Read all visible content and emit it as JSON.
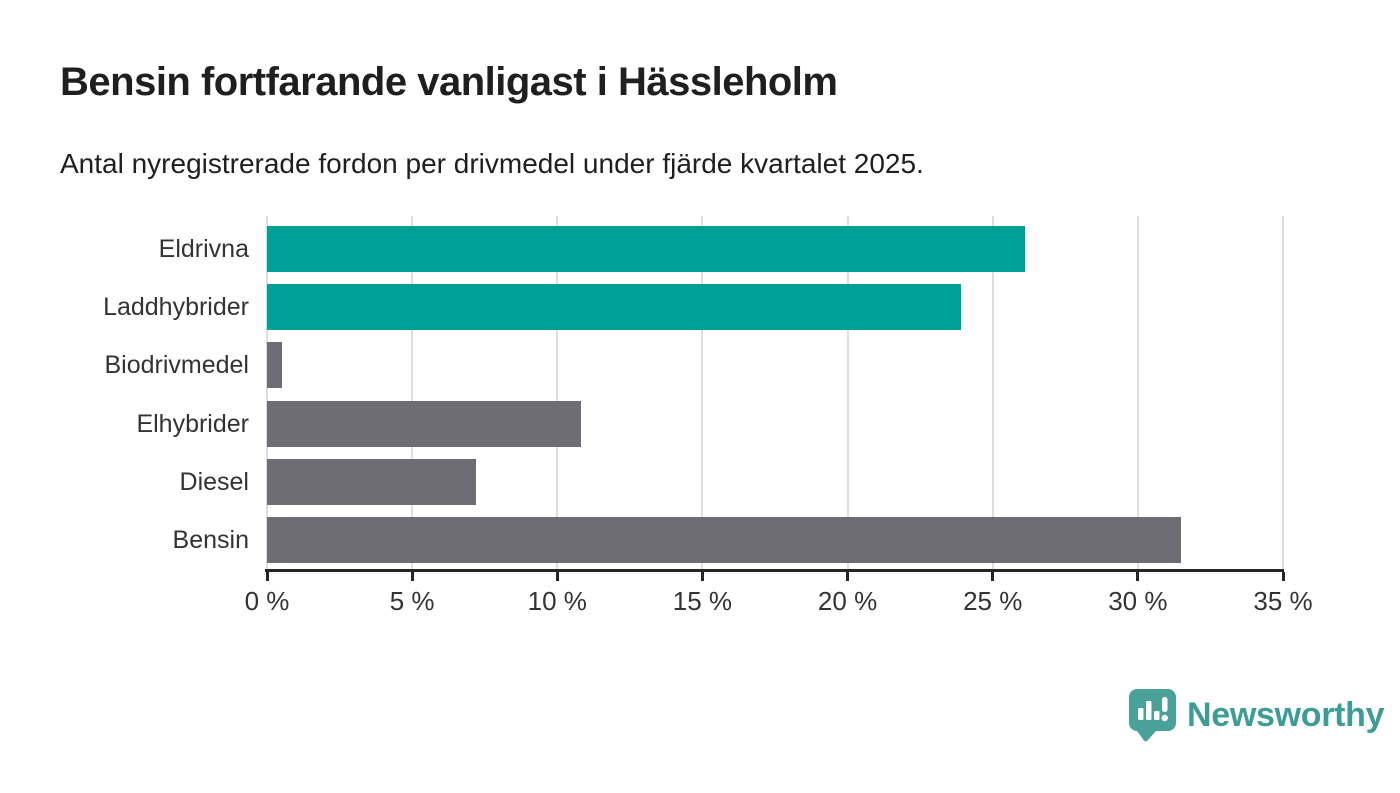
{
  "title": "Bensin fortfarande vanligast i Hässleholm",
  "subtitle": "Antal nyregistrerade fordon per drivmedel under fjärde kvartalet 2025.",
  "chart_data": {
    "type": "bar",
    "orientation": "horizontal",
    "categories": [
      "Eldrivna",
      "Laddhybrider",
      "Biodrivmedel",
      "Elhybrider",
      "Diesel",
      "Bensin"
    ],
    "values": [
      26.1,
      23.9,
      0.5,
      10.8,
      7.2,
      31.5
    ],
    "bar_colors": [
      "#00A096",
      "#00A096",
      "#6E6C74",
      "#6E6C74",
      "#6E6C74",
      "#6E6C74"
    ],
    "title": "Bensin fortfarande vanligast i Hässleholm",
    "subtitle": "Antal nyregistrerade fordon per drivmedel under fjärde kvartalet 2025.",
    "xlabel": "",
    "ylabel": "",
    "xlim": [
      0,
      35
    ],
    "x_ticks": [
      0,
      5,
      10,
      15,
      20,
      25,
      30,
      35
    ],
    "x_tick_labels": [
      "0 %",
      "5 %",
      "10 %",
      "15 %",
      "20 %",
      "25 %",
      "30 %",
      "35 %"
    ],
    "grid": "vertical-only",
    "legend": "none",
    "value_labels": "none"
  },
  "colors": {
    "accent_teal": "#00A096",
    "bar_gray": "#6E6C74",
    "gridline": "#DEDEDE",
    "axis": "#262626",
    "text_dark": "#1F1F1F",
    "text_label": "#333333",
    "logo_icon_teal": "#4AA19A",
    "logo_text_teal": "#3E9C96"
  },
  "branding": {
    "logo_text": "Newsworthy",
    "logo_icon": "bar-chart-speech-pin-icon"
  }
}
